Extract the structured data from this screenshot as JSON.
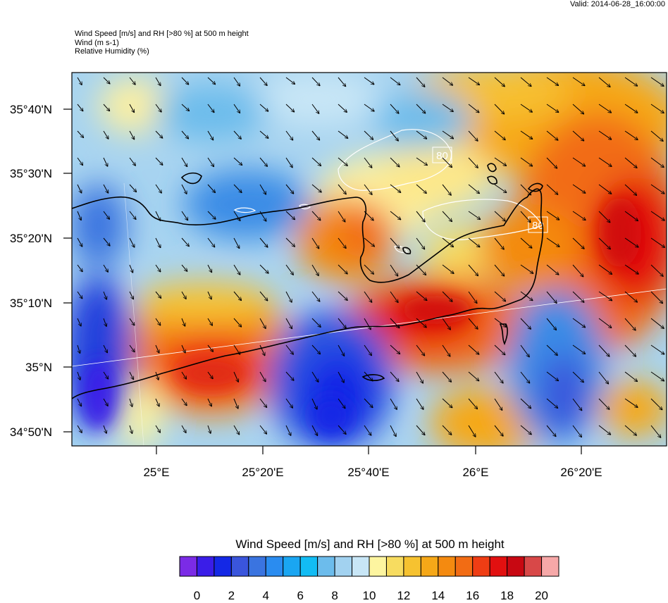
{
  "valid_time": "Valid: 2014-06-28_16:00:00",
  "header": {
    "line1": "Wind Speed [m/s] and RH [>80 %] at 500 m height",
    "line2": "Wind   (m s-1)",
    "line3": "Relative Humidity   (%)"
  },
  "map": {
    "lat_labels": [
      "35°40'N",
      "35°30'N",
      "35°20'N",
      "35°10'N",
      "35°N",
      "34°50'N"
    ],
    "lon_labels": [
      "25°E",
      "25°20'E",
      "25°40'E",
      "26°E",
      "26°20'E"
    ],
    "contour_labels": [
      "80",
      "80"
    ]
  },
  "colorbar": {
    "title": "Wind Speed [m/s] and RH [>80 %] at 500 m height",
    "colors": [
      "#7b2be6",
      "#3a1de8",
      "#1428e6",
      "#3a55dc",
      "#3a74e0",
      "#2a8cf0",
      "#1aa6f2",
      "#12bcf4",
      "#6cbcec",
      "#a2d2f0",
      "#c8e6f6",
      "#fdf5a0",
      "#f7dc60",
      "#f6c230",
      "#f6a818",
      "#f48a10",
      "#f26c14",
      "#ef3d14",
      "#e21010",
      "#c80812",
      "#d84848",
      "#f6a8a8"
    ],
    "tick_labels": [
      "0",
      "2",
      "4",
      "6",
      "8",
      "10",
      "12",
      "14",
      "16",
      "18",
      "20"
    ]
  }
}
